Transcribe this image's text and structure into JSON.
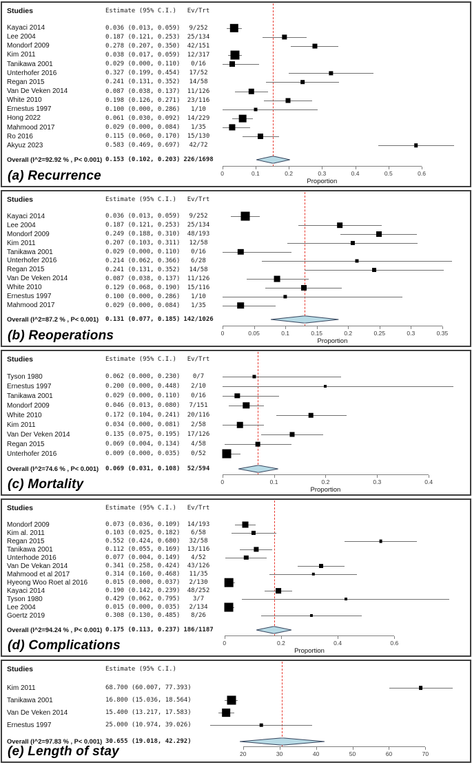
{
  "colors": {
    "summary_fill": "#b8dbe6",
    "summary_stroke": "#37465e",
    "overall_line_red": "#e8392f",
    "ci_line": "#6f6f6f",
    "marker": "#000000",
    "axis": "#7f7f7f"
  },
  "chart_data": [
    {
      "panel_id": "a",
      "caption": "(a) Recurrence",
      "type": "scatter",
      "subtype": "forest-plot",
      "columns": {
        "studies": "Studies",
        "estimate": "Estimate (95% C.I.)",
        "evtrt": "Ev/Trt"
      },
      "xlabel": "Proportion",
      "xdomain": [
        -0.02,
        0.745
      ],
      "xticks": [
        {
          "v": 0,
          "t": "0"
        },
        {
          "v": 0.1,
          "t": "0.1"
        },
        {
          "v": 0.2,
          "t": "0.2"
        },
        {
          "v": 0.3,
          "t": "0.3"
        },
        {
          "v": 0.4,
          "t": "0.4"
        },
        {
          "v": 0.5,
          "t": "0.5"
        },
        {
          "v": 0.6,
          "t": "0.6"
        }
      ],
      "studies": [
        {
          "name": "Kayaci 2014",
          "est": 0.036,
          "lo": 0.013,
          "hi": 0.059,
          "text": "0.036 (0.013, 0.059)",
          "evtrt": "9/252"
        },
        {
          "name": "Lee 2004",
          "est": 0.187,
          "lo": 0.121,
          "hi": 0.253,
          "text": "0.187 (0.121, 0.253)",
          "evtrt": "25/134"
        },
        {
          "name": "Mondorf 2009",
          "est": 0.278,
          "lo": 0.207,
          "hi": 0.35,
          "text": "0.278 (0.207, 0.350)",
          "evtrt": "42/151"
        },
        {
          "name": "Kim 2011",
          "est": 0.038,
          "lo": 0.017,
          "hi": 0.059,
          "text": "0.038 (0.017, 0.059)",
          "evtrt": "12/317"
        },
        {
          "name": "Tanikawa 2001",
          "est": 0.029,
          "lo": 0.0,
          "hi": 0.11,
          "text": "0.029 (0.000, 0.110)",
          "evtrt": "0/16"
        },
        {
          "name": "Unterhofer 2016",
          "est": 0.327,
          "lo": 0.199,
          "hi": 0.454,
          "text": "0.327 (0.199, 0.454)",
          "evtrt": "17/52"
        },
        {
          "name": "Regan 2015",
          "est": 0.241,
          "lo": 0.131,
          "hi": 0.352,
          "text": "0.241 (0.131, 0.352)",
          "evtrt": "14/58"
        },
        {
          "name": "Van De Veken 2014",
          "est": 0.087,
          "lo": 0.038,
          "hi": 0.137,
          "text": "0.087 (0.038, 0.137)",
          "evtrt": "11/126"
        },
        {
          "name": "White 2010",
          "est": 0.198,
          "lo": 0.126,
          "hi": 0.271,
          "text": "0.198 (0.126, 0.271)",
          "evtrt": "23/116"
        },
        {
          "name": "Ernestus 1997",
          "est": 0.1,
          "lo": 0.0,
          "hi": 0.286,
          "text": "0.100 (0.000, 0.286)",
          "evtrt": "1/10"
        },
        {
          "name": "Hong 2022",
          "est": 0.061,
          "lo": 0.03,
          "hi": 0.092,
          "text": "0.061 (0.030, 0.092)",
          "evtrt": "14/229"
        },
        {
          "name": "Mahmood 2017",
          "est": 0.029,
          "lo": 0.0,
          "hi": 0.084,
          "text": "0.029 (0.000, 0.084)",
          "evtrt": "1/35"
        },
        {
          "name": "Ro 2016",
          "est": 0.115,
          "lo": 0.06,
          "hi": 0.17,
          "text": "0.115 (0.060, 0.170)",
          "evtrt": "15/130"
        },
        {
          "name": "Akyuz 2023",
          "est": 0.583,
          "lo": 0.469,
          "hi": 0.697,
          "text": "0.583 (0.469, 0.697)",
          "evtrt": "42/72"
        }
      ],
      "overall": {
        "name": "Overall (I^2=92.92 % , P< 0.001)",
        "est": 0.153,
        "lo": 0.102,
        "hi": 0.203,
        "text": "0.153 (0.102, 0.203)",
        "evtrt": "226/1698"
      }
    },
    {
      "panel_id": "b",
      "caption": "(b) Reoperations",
      "type": "scatter",
      "subtype": "forest-plot",
      "columns": {
        "studies": "Studies",
        "estimate": "Estimate (95% C.I.)",
        "evtrt": "Ev/Trt"
      },
      "xlabel": "Proportion",
      "xdomain": [
        -0.011,
        0.394
      ],
      "xticks": [
        {
          "v": 0,
          "t": "0"
        },
        {
          "v": 0.05,
          "t": "0.05"
        },
        {
          "v": 0.1,
          "t": "0.1"
        },
        {
          "v": 0.15,
          "t": "0.15"
        },
        {
          "v": 0.2,
          "t": "0.2"
        },
        {
          "v": 0.25,
          "t": "0.25"
        },
        {
          "v": 0.3,
          "t": "0.3"
        },
        {
          "v": 0.35,
          "t": "0.35"
        }
      ],
      "studies": [
        {
          "name": "Kayaci 2014",
          "est": 0.036,
          "lo": 0.013,
          "hi": 0.059,
          "text": "0.036 (0.013, 0.059)",
          "evtrt": "9/252"
        },
        {
          "name": "Lee 2004",
          "est": 0.187,
          "lo": 0.121,
          "hi": 0.253,
          "text": "0.187 (0.121, 0.253)",
          "evtrt": "25/134"
        },
        {
          "name": "Mondorf 2009",
          "est": 0.249,
          "lo": 0.188,
          "hi": 0.31,
          "text": "0.249 (0.188, 0.310)",
          "evtrt": "48/193"
        },
        {
          "name": "Kim 2011",
          "est": 0.207,
          "lo": 0.103,
          "hi": 0.311,
          "text": "0.207 (0.103, 0.311)",
          "evtrt": "12/58"
        },
        {
          "name": "Tanikawa 2001",
          "est": 0.029,
          "lo": 0.0,
          "hi": 0.11,
          "text": "0.029 (0.000, 0.110)",
          "evtrt": "0/16"
        },
        {
          "name": "Unterhofer 2016",
          "est": 0.214,
          "lo": 0.062,
          "hi": 0.366,
          "text": "0.214 (0.062, 0.366)",
          "evtrt": "6/28"
        },
        {
          "name": "Regan 2015",
          "est": 0.241,
          "lo": 0.131,
          "hi": 0.352,
          "text": "0.241 (0.131, 0.352)",
          "evtrt": "14/58"
        },
        {
          "name": "Van De Veken 2014",
          "est": 0.087,
          "lo": 0.038,
          "hi": 0.137,
          "text": "0.087 (0.038, 0.137)",
          "evtrt": "11/126"
        },
        {
          "name": "White 2010",
          "est": 0.129,
          "lo": 0.068,
          "hi": 0.19,
          "text": "0.129 (0.068, 0.190)",
          "evtrt": "15/116"
        },
        {
          "name": "Ernestus 1997",
          "est": 0.1,
          "lo": 0.0,
          "hi": 0.286,
          "text": "0.100 (0.000, 0.286)",
          "evtrt": "1/10"
        },
        {
          "name": "Mahmood 2017",
          "est": 0.029,
          "lo": 0.0,
          "hi": 0.084,
          "text": "0.029 (0.000, 0.084)",
          "evtrt": "1/35"
        }
      ],
      "overall": {
        "name": "Overall (I^2=87.2 % , P< 0.001)",
        "est": 0.131,
        "lo": 0.077,
        "hi": 0.185,
        "text": "0.131 (0.077, 0.185)",
        "evtrt": "142/1026"
      }
    },
    {
      "panel_id": "c",
      "caption": "(c) Mortality",
      "type": "scatter",
      "subtype": "forest-plot",
      "columns": {
        "studies": "Studies",
        "estimate": "Estimate (95% C.I.)",
        "evtrt": "Ev/Trt"
      },
      "xlabel": "Proportion",
      "xdomain": [
        -0.013,
        0.48
      ],
      "xticks": [
        {
          "v": 0,
          "t": "0"
        },
        {
          "v": 0.1,
          "t": "0.1"
        },
        {
          "v": 0.2,
          "t": "0.2"
        },
        {
          "v": 0.3,
          "t": "0.3"
        },
        {
          "v": 0.4,
          "t": "0.4"
        }
      ],
      "studies": [
        {
          "name": "Tyson 1980",
          "est": 0.062,
          "lo": 0.0,
          "hi": 0.23,
          "text": "0.062 (0.000, 0.230)",
          "evtrt": "0/7"
        },
        {
          "name": "Ernestus 1997",
          "est": 0.2,
          "lo": 0.0,
          "hi": 0.448,
          "text": "0.200 (0.000, 0.448)",
          "evtrt": "2/10"
        },
        {
          "name": "Tanikawa 2001",
          "est": 0.029,
          "lo": 0.0,
          "hi": 0.11,
          "text": "0.029 (0.000, 0.110)",
          "evtrt": "0/16"
        },
        {
          "name": "Mondorf 2009",
          "est": 0.046,
          "lo": 0.013,
          "hi": 0.08,
          "text": "0.046 (0.013, 0.080)",
          "evtrt": "7/151"
        },
        {
          "name": "White 2010",
          "est": 0.172,
          "lo": 0.104,
          "hi": 0.241,
          "text": "0.172 (0.104, 0.241)",
          "evtrt": "20/116"
        },
        {
          "name": "Kim 2011",
          "est": 0.034,
          "lo": 0.0,
          "hi": 0.081,
          "text": "0.034 (0.000, 0.081)",
          "evtrt": "2/58"
        },
        {
          "name": "Van Der Veken 2014",
          "est": 0.135,
          "lo": 0.075,
          "hi": 0.195,
          "text": "0.135 (0.075, 0.195)",
          "evtrt": "17/126"
        },
        {
          "name": "Regan 2015",
          "est": 0.069,
          "lo": 0.004,
          "hi": 0.134,
          "text": "0.069 (0.004, 0.134)",
          "evtrt": "4/58"
        },
        {
          "name": "Unterhofer 2016",
          "est": 0.009,
          "lo": 0.0,
          "hi": 0.035,
          "text": "0.009 (0.000, 0.035)",
          "evtrt": "0/52"
        }
      ],
      "overall": {
        "name": "Overall (I^2=74.6 % , P< 0.001)",
        "est": 0.069,
        "lo": 0.031,
        "hi": 0.108,
        "text": "0.069 (0.031, 0.108)",
        "evtrt": "52/594"
      }
    },
    {
      "panel_id": "d",
      "caption": "(d) Complications",
      "type": "scatter",
      "subtype": "forest-plot",
      "columns": {
        "studies": "Studies",
        "estimate": "Estimate (95% C.I.)",
        "evtrt": "Ev/Trt"
      },
      "xlabel": "Proportion",
      "xdomain": [
        -0.031,
        0.867
      ],
      "xticks": [
        {
          "v": 0,
          "t": "0"
        },
        {
          "v": 0.2,
          "t": "0.2"
        },
        {
          "v": 0.4,
          "t": "0.4"
        },
        {
          "v": 0.6,
          "t": "0.6"
        }
      ],
      "studies": [
        {
          "name": "Mondorf 2009",
          "est": 0.073,
          "lo": 0.036,
          "hi": 0.109,
          "text": "0.073 (0.036, 0.109)",
          "evtrt": "14/193"
        },
        {
          "name": "Kim al. 2011",
          "est": 0.103,
          "lo": 0.025,
          "hi": 0.182,
          "text": "0.103 (0.025, 0.182)",
          "evtrt": "6/58"
        },
        {
          "name": "Regan 2015",
          "est": 0.552,
          "lo": 0.424,
          "hi": 0.68,
          "text": "0.552 (0.424, 0.680)",
          "evtrt": "32/58"
        },
        {
          "name": "Tanikawa 2001",
          "est": 0.112,
          "lo": 0.055,
          "hi": 0.169,
          "text": "0.112 (0.055, 0.169)",
          "evtrt": "13/116"
        },
        {
          "name": "Unterhode 2016",
          "est": 0.077,
          "lo": 0.004,
          "hi": 0.149,
          "text": "0.077 (0.004, 0.149)",
          "evtrt": "4/52"
        },
        {
          "name": "Van De Vekan 2014",
          "est": 0.341,
          "lo": 0.258,
          "hi": 0.424,
          "text": "0.341 (0.258, 0.424)",
          "evtrt": "43/126"
        },
        {
          "name": "Mahmood et al 2017",
          "est": 0.314,
          "lo": 0.16,
          "hi": 0.468,
          "text": "0.314 (0.160, 0.468)",
          "evtrt": "11/35"
        },
        {
          "name": "Hyeong Woo Roet al 2016",
          "est": 0.015,
          "lo": 0.0,
          "hi": 0.037,
          "text": "0.015 (0.000, 0.037)",
          "evtrt": "2/130"
        },
        {
          "name": "Kayaci 2014",
          "est": 0.19,
          "lo": 0.142,
          "hi": 0.239,
          "text": "0.190 (0.142, 0.239)",
          "evtrt": "48/252"
        },
        {
          "name": "Tyson 1980",
          "est": 0.429,
          "lo": 0.062,
          "hi": 0.795,
          "text": "0.429 (0.062, 0.795)",
          "evtrt": "3/7"
        },
        {
          "name": "Lee 2004",
          "est": 0.015,
          "lo": 0.0,
          "hi": 0.035,
          "text": "0.015 (0.000, 0.035)",
          "evtrt": "2/134"
        },
        {
          "name": "Goertz 2019",
          "est": 0.308,
          "lo": 0.13,
          "hi": 0.485,
          "text": "0.308 (0.130, 0.485)",
          "evtrt": "8/26"
        }
      ],
      "overall": {
        "name": "Overall (I^2=94.24 % , P< 0.001)",
        "est": 0.175,
        "lo": 0.113,
        "hi": 0.237,
        "text": "0.175 (0.113, 0.237)",
        "evtrt": "186/1187"
      }
    },
    {
      "panel_id": "e",
      "caption": "(e) Length of stay",
      "type": "scatter",
      "subtype": "forest-plot",
      "columns": {
        "studies": "Studies",
        "estimate": "Estimate (95% C.I.)"
      },
      "xlabel": null,
      "xdomain": [
        12.5,
        82.2
      ],
      "xticks": [
        {
          "v": 20,
          "t": "20"
        },
        {
          "v": 30,
          "t": "30"
        },
        {
          "v": 40,
          "t": "40"
        },
        {
          "v": 50,
          "t": "50"
        },
        {
          "v": 60,
          "t": "60"
        },
        {
          "v": 70,
          "t": "70"
        }
      ],
      "studies": [
        {
          "name": "Kim 2011",
          "est": 68.7,
          "lo": 60.007,
          "hi": 77.393,
          "text": "68.700 (60.007, 77.393)",
          "evtrt": ""
        },
        {
          "name": "Tanikawa 2001",
          "est": 16.8,
          "lo": 15.036,
          "hi": 18.564,
          "text": "16.800 (15.036, 18.564)",
          "evtrt": ""
        },
        {
          "name": "Van De Veken 2014",
          "est": 15.4,
          "lo": 13.217,
          "hi": 17.583,
          "text": "15.400 (13.217, 17.583)",
          "evtrt": ""
        },
        {
          "name": "Ernestus 1997",
          "est": 25.0,
          "lo": 10.974,
          "hi": 39.026,
          "text": "25.000 (10.974, 39.026)",
          "evtrt": ""
        }
      ],
      "overall": {
        "name": "Overall (I^2=97.83 % , P< 0.001)",
        "est": 30.655,
        "lo": 19.018,
        "hi": 42.292,
        "text": "30.655 (19.018, 42.292)",
        "evtrt": ""
      }
    }
  ]
}
